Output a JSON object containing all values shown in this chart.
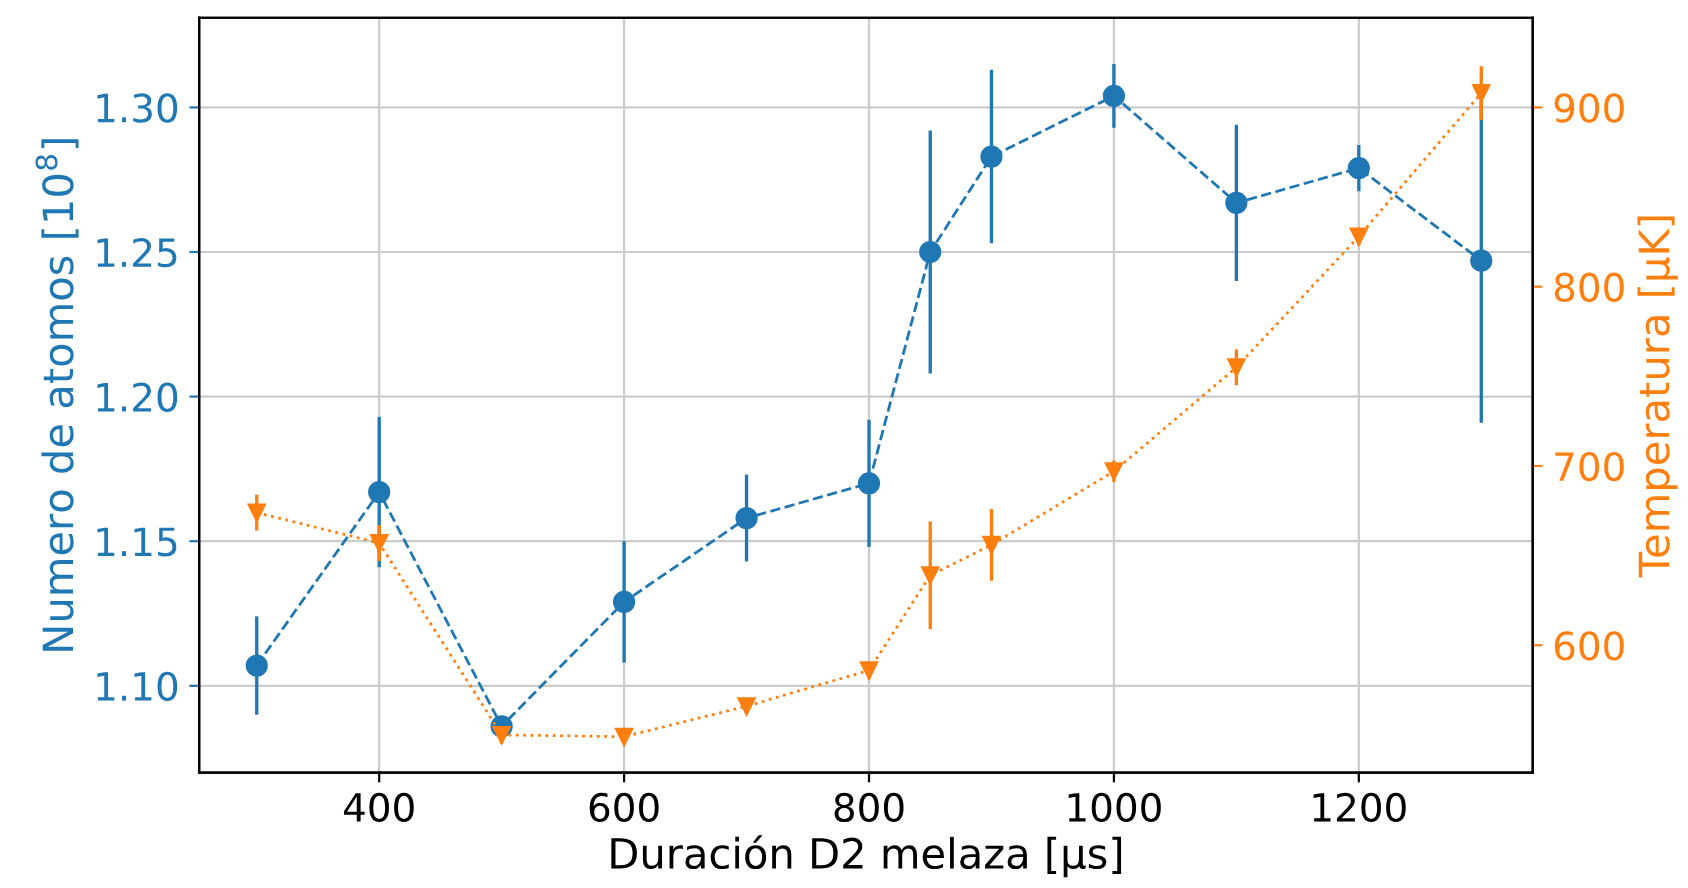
{
  "chart_data": {
    "type": "line",
    "xlabel": "Duración D2 melaza [μs]",
    "ylabel": "Numero de atomos [10$^{8}$]",
    "y2label": "Temperatura [μK]",
    "x": [
      300,
      400,
      500,
      600,
      700,
      800,
      850,
      900,
      1000,
      1100,
      1200,
      1300
    ],
    "series": [
      {
        "color": "#1f77b4",
        "marker": "circle",
        "line_style": "dashed",
        "values": [
          1.107,
          1.167,
          1.086,
          1.129,
          1.158,
          1.17,
          1.25,
          1.283,
          1.304,
          1.267,
          1.279,
          1.247
        ],
        "errors": [
          0.017,
          0.026,
          0.003,
          0.021,
          0.015,
          0.022,
          0.042,
          0.03,
          0.011,
          0.027,
          0.008,
          0.056
        ]
      },
      {
        "color": "#ff7f0e",
        "marker": "triangle",
        "line_style": "dotted",
        "axis": "y2",
        "values": [
          674,
          657,
          550,
          549,
          566,
          586,
          639,
          656,
          697,
          755,
          828,
          908
        ],
        "errors": [
          10,
          10,
          5,
          4,
          4,
          5,
          30,
          20,
          6,
          10,
          5,
          15
        ]
      }
    ],
    "xlim": [
      253,
      1342
    ],
    "xticks": [
      400,
      600,
      800,
      1000,
      1200
    ],
    "ylim": [
      1.07,
      1.331
    ],
    "yticks": [
      {
        "value": 1.1,
        "label": "1.10"
      },
      {
        "value": 1.15,
        "label": "1.15"
      },
      {
        "value": 1.2,
        "label": "1.20"
      },
      {
        "value": 1.25,
        "label": "1.25"
      },
      {
        "value": 1.3,
        "label": "1.30"
      }
    ],
    "y2lim": [
      529,
      950
    ],
    "y2ticks": [
      600,
      700,
      800,
      900
    ],
    "grid": true
  }
}
